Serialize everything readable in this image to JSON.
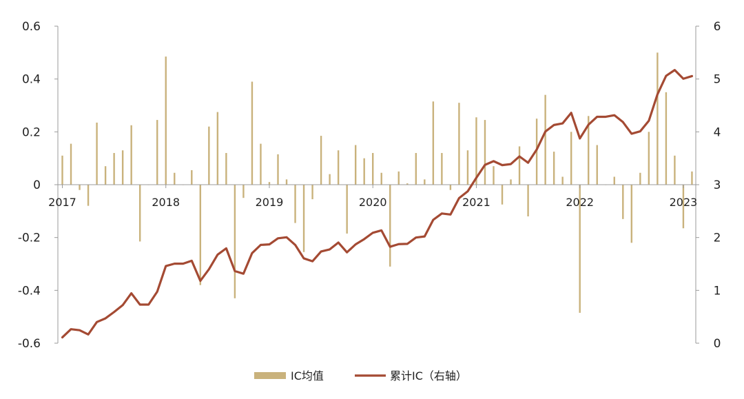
{
  "chart_data": {
    "type": "bar+line",
    "title": "",
    "categories_note": "monthly, Jan 2017 – Mar 2023",
    "x_tick_labels": [
      "2017",
      "2018",
      "2019",
      "2020",
      "2021",
      "2022",
      "2023"
    ],
    "left_axis": {
      "ylim": [
        -0.6,
        0.6
      ],
      "ticks": [
        "0.6",
        "0.4",
        "0.2",
        "0",
        "-0.2",
        "-0.4",
        "-0.6"
      ]
    },
    "right_axis": {
      "ylim": [
        0,
        6
      ],
      "ticks": [
        "6",
        "5",
        "4",
        "3",
        "2",
        "1",
        "0"
      ]
    },
    "series": [
      {
        "name": "IC均值",
        "type": "bar",
        "axis": "left",
        "color": "#C9B27C",
        "values": [
          0.11,
          0.155,
          -0.02,
          -0.08,
          0.235,
          0.07,
          0.12,
          0.13,
          0.225,
          -0.215,
          0.0,
          0.245,
          0.485,
          0.045,
          0.0,
          0.055,
          -0.38,
          0.22,
          0.275,
          0.12,
          -0.43,
          -0.05,
          0.39,
          0.155,
          0.01,
          0.115,
          0.02,
          -0.145,
          -0.255,
          -0.055,
          0.185,
          0.04,
          0.13,
          -0.185,
          0.15,
          0.1,
          0.12,
          0.045,
          -0.31,
          0.05,
          0.005,
          0.12,
          0.02,
          0.315,
          0.12,
          -0.02,
          0.31,
          0.13,
          0.255,
          0.245,
          0.07,
          -0.075,
          0.02,
          0.145,
          -0.12,
          0.25,
          0.34,
          0.125,
          0.03,
          0.2,
          -0.485,
          0.26,
          0.15,
          0.0,
          0.03,
          -0.13,
          -0.22,
          0.045,
          0.2,
          0.5,
          0.35,
          0.11,
          -0.165,
          0.05
        ]
      },
      {
        "name": "累计IC（右轴）",
        "type": "line",
        "axis": "right",
        "color": "#A44A33",
        "values": [
          0.11,
          0.265,
          0.245,
          0.165,
          0.4,
          0.47,
          0.59,
          0.72,
          0.945,
          0.73,
          0.73,
          0.975,
          1.46,
          1.505,
          1.505,
          1.56,
          1.18,
          1.4,
          1.675,
          1.795,
          1.365,
          1.315,
          1.705,
          1.86,
          1.87,
          1.985,
          2.005,
          1.86,
          1.605,
          1.55,
          1.735,
          1.775,
          1.905,
          1.72,
          1.87,
          1.97,
          2.09,
          2.135,
          1.825,
          1.875,
          1.88,
          2.0,
          2.02,
          2.335,
          2.455,
          2.435,
          2.745,
          2.875,
          3.13,
          3.375,
          3.445,
          3.37,
          3.39,
          3.535,
          3.415,
          3.665,
          4.005,
          4.13,
          4.16,
          4.36,
          3.875,
          4.135,
          4.285,
          4.285,
          4.315,
          4.185,
          3.965,
          4.01,
          4.21,
          4.71,
          5.06,
          5.17,
          5.005,
          5.055
        ]
      }
    ],
    "legend": {
      "placement": "bottom-center",
      "entries": [
        "IC均值",
        "累计IC（右轴）"
      ]
    },
    "grid": false
  }
}
